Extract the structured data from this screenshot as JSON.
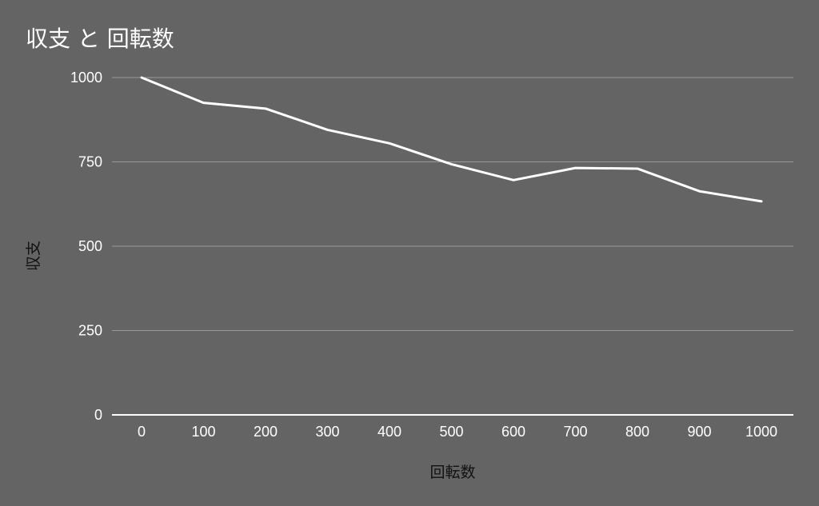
{
  "chart_data": {
    "type": "line",
    "title": "収支 と 回転数",
    "xlabel": "回転数",
    "ylabel": "収支",
    "x": [
      0,
      100,
      200,
      300,
      400,
      500,
      600,
      700,
      800,
      900,
      1000
    ],
    "xticks": [
      "0",
      "100",
      "200",
      "300",
      "400",
      "500",
      "600",
      "700",
      "800",
      "900",
      "1000"
    ],
    "yticks": [
      "0",
      "250",
      "500",
      "750",
      "1000"
    ],
    "ylim": [
      0,
      1000
    ],
    "grid": true,
    "legend": "none",
    "series": [
      {
        "values": [
          1000,
          925,
          908,
          845,
          805,
          743,
          696,
          732,
          730,
          663,
          633
        ],
        "color": "#ffffff"
      }
    ],
    "colors": {
      "background": "#646464",
      "text": "#ffffff",
      "axis_label": "#111111",
      "grid": "#9a9a9a",
      "line": "#ffffff"
    }
  }
}
